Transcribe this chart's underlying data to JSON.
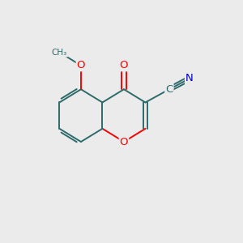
{
  "background_color": "#ebebeb",
  "bond_color": "#2d6b6b",
  "oxygen_color": "#ff0000",
  "nitrogen_color": "#0000cd",
  "figsize": [
    3.0,
    3.0
  ],
  "dpi": 100,
  "xlim": [
    0,
    10
  ],
  "ylim": [
    0,
    10
  ]
}
